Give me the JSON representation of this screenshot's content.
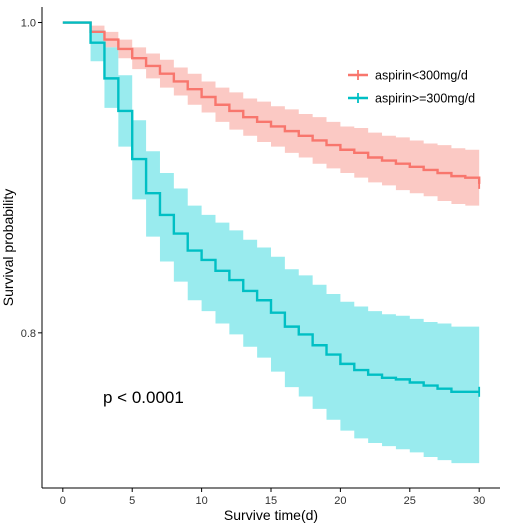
{
  "chart_data": {
    "type": "line",
    "title": "",
    "xlabel": "Survive time(d)",
    "ylabel": "Survival probability",
    "xlim": [
      -1.5,
      31.5
    ],
    "ylim": [
      0.7,
      1.01
    ],
    "x_ticks": [
      0,
      5,
      10,
      15,
      20,
      25,
      30
    ],
    "x_tick_labels": [
      "0",
      "5",
      "10",
      "15",
      "20",
      "25",
      "30"
    ],
    "y_ticks": [
      0.8,
      1.0
    ],
    "y_tick_labels": [
      "0.8",
      "1.0"
    ],
    "grid": false,
    "legend_position": "top-right",
    "annotation": "p < 0.0001",
    "series": [
      {
        "name": "aspirin<300mg/d",
        "color": "#F8766D",
        "band_color": "#FBC9C4",
        "x": [
          0,
          2,
          3,
          4,
          5,
          6,
          7,
          8,
          9,
          10,
          11,
          12,
          13,
          14,
          15,
          16,
          17,
          18,
          19,
          20,
          21,
          22,
          23,
          24,
          25,
          26,
          27,
          28,
          29,
          30
        ],
        "y": [
          1.0,
          0.994,
          0.989,
          0.983,
          0.977,
          0.972,
          0.967,
          0.962,
          0.957,
          0.952,
          0.947,
          0.943,
          0.939,
          0.936,
          0.933,
          0.93,
          0.927,
          0.924,
          0.921,
          0.918,
          0.916,
          0.913,
          0.911,
          0.909,
          0.907,
          0.905,
          0.903,
          0.901,
          0.9,
          0.896
        ],
        "lower": [
          1.0,
          0.99,
          0.984,
          0.977,
          0.97,
          0.964,
          0.958,
          0.953,
          0.947,
          0.942,
          0.936,
          0.931,
          0.927,
          0.923,
          0.92,
          0.916,
          0.913,
          0.909,
          0.906,
          0.903,
          0.9,
          0.897,
          0.895,
          0.892,
          0.89,
          0.888,
          0.885,
          0.883,
          0.882,
          0.878
        ],
        "upper": [
          1.0,
          0.998,
          0.994,
          0.989,
          0.984,
          0.98,
          0.976,
          0.971,
          0.967,
          0.962,
          0.958,
          0.955,
          0.951,
          0.949,
          0.946,
          0.944,
          0.941,
          0.939,
          0.936,
          0.933,
          0.932,
          0.929,
          0.927,
          0.926,
          0.924,
          0.922,
          0.921,
          0.919,
          0.918,
          0.914
        ]
      },
      {
        "name": "aspirin>=300mg/d",
        "color": "#00BFC4",
        "band_color": "#99EBEE",
        "x": [
          0,
          2,
          3,
          4,
          5,
          6,
          7,
          8,
          9,
          10,
          11,
          12,
          13,
          14,
          15,
          16,
          17,
          18,
          19,
          20,
          21,
          22,
          23,
          24,
          25,
          26,
          27,
          28,
          29,
          30
        ],
        "y": [
          1.0,
          0.987,
          0.964,
          0.943,
          0.912,
          0.89,
          0.876,
          0.864,
          0.853,
          0.847,
          0.84,
          0.834,
          0.827,
          0.821,
          0.813,
          0.804,
          0.799,
          0.792,
          0.786,
          0.78,
          0.776,
          0.773,
          0.771,
          0.77,
          0.768,
          0.766,
          0.764,
          0.762,
          0.762,
          0.762
        ],
        "lower": [
          1.0,
          0.975,
          0.945,
          0.92,
          0.886,
          0.862,
          0.846,
          0.833,
          0.821,
          0.814,
          0.806,
          0.799,
          0.791,
          0.784,
          0.775,
          0.765,
          0.759,
          0.751,
          0.744,
          0.737,
          0.732,
          0.729,
          0.727,
          0.725,
          0.723,
          0.72,
          0.718,
          0.716,
          0.716,
          0.716
        ],
        "upper": [
          1.0,
          0.995,
          0.984,
          0.966,
          0.937,
          0.917,
          0.903,
          0.893,
          0.882,
          0.876,
          0.871,
          0.866,
          0.86,
          0.855,
          0.849,
          0.841,
          0.837,
          0.831,
          0.825,
          0.82,
          0.817,
          0.814,
          0.812,
          0.811,
          0.809,
          0.807,
          0.806,
          0.804,
          0.804,
          0.804
        ]
      }
    ]
  }
}
